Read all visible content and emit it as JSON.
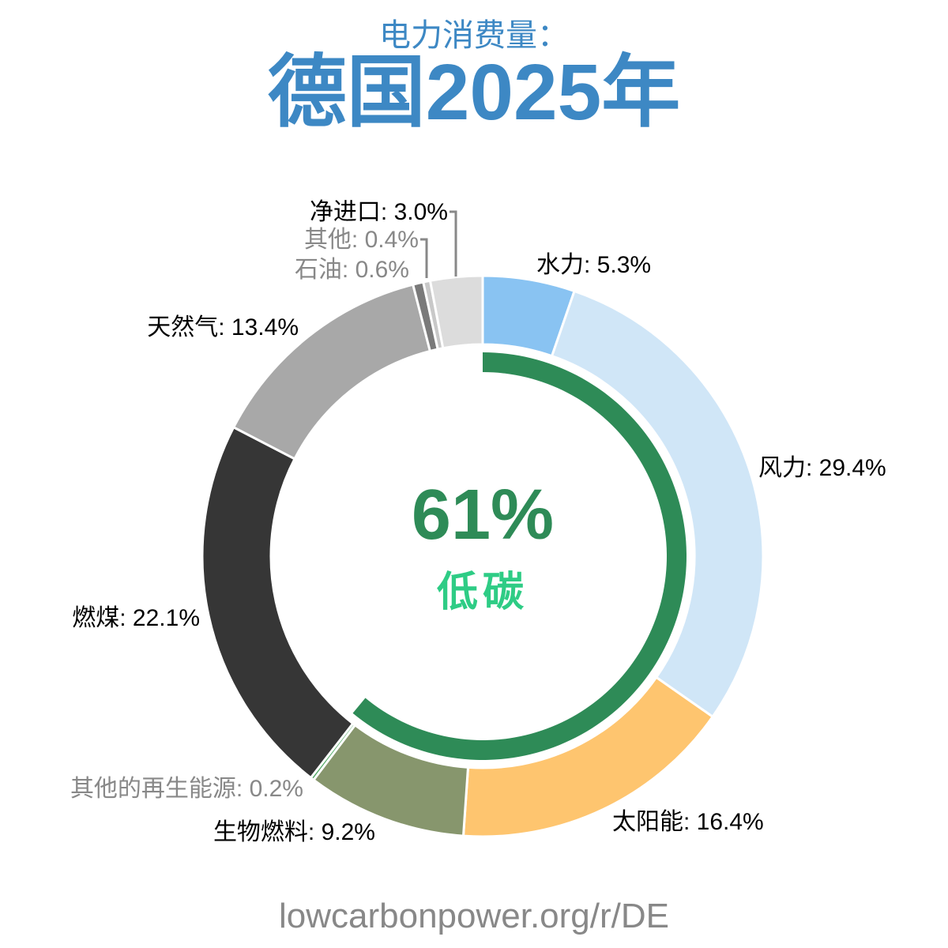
{
  "header": {
    "subtitle": "电力消费量：",
    "title": "德国2025年"
  },
  "center": {
    "value": "61%",
    "label": "低碳",
    "value_color": "#2e8b57",
    "label_color": "#2ecc85"
  },
  "footer": {
    "url": "lowcarbonpower.org/r/DE"
  },
  "chart_data": {
    "type": "pie",
    "subtype": "donut",
    "title": "电力消费量：德国2025年",
    "center_text": "61% 低碳",
    "low_carbon_share": 61,
    "categories": [
      "水力",
      "风力",
      "太阳能",
      "生物燃料",
      "其他的再生能源",
      "燃煤",
      "天然气",
      "石油",
      "其他",
      "净进口"
    ],
    "values": [
      5.3,
      29.4,
      16.4,
      9.2,
      0.2,
      22.1,
      13.4,
      0.6,
      0.4,
      3.0
    ],
    "colors": [
      "#89c3f2",
      "#d0e6f7",
      "#fec56f",
      "#87966d",
      "#4aa65e",
      "#363636",
      "#a8a8a8",
      "#7a7a7a",
      "#c8c8c8",
      "#dcdcdc"
    ],
    "labels": [
      {
        "name": "水力",
        "text": "水力: 5.3%",
        "color": "#000000"
      },
      {
        "name": "风力",
        "text": "风力: 29.4%",
        "color": "#000000"
      },
      {
        "name": "太阳能",
        "text": "太阳能: 16.4%",
        "color": "#000000"
      },
      {
        "name": "生物燃料",
        "text": "生物燃料: 9.2%",
        "color": "#000000"
      },
      {
        "name": "其他的再生能源",
        "text": "其他的再生能源: 0.2%",
        "color": "#888888"
      },
      {
        "name": "燃煤",
        "text": "燃煤: 22.1%",
        "color": "#000000"
      },
      {
        "name": "天然气",
        "text": "天然气: 13.4%",
        "color": "#000000"
      },
      {
        "name": "石油",
        "text": "石油: 0.6%",
        "color": "#888888"
      },
      {
        "name": "其他",
        "text": "其他: 0.4%",
        "color": "#888888"
      },
      {
        "name": "净进口",
        "text": "净进口: 3.0%",
        "color": "#000000"
      }
    ],
    "inner_ring": {
      "value": 61,
      "color": "#2e8b57"
    }
  }
}
